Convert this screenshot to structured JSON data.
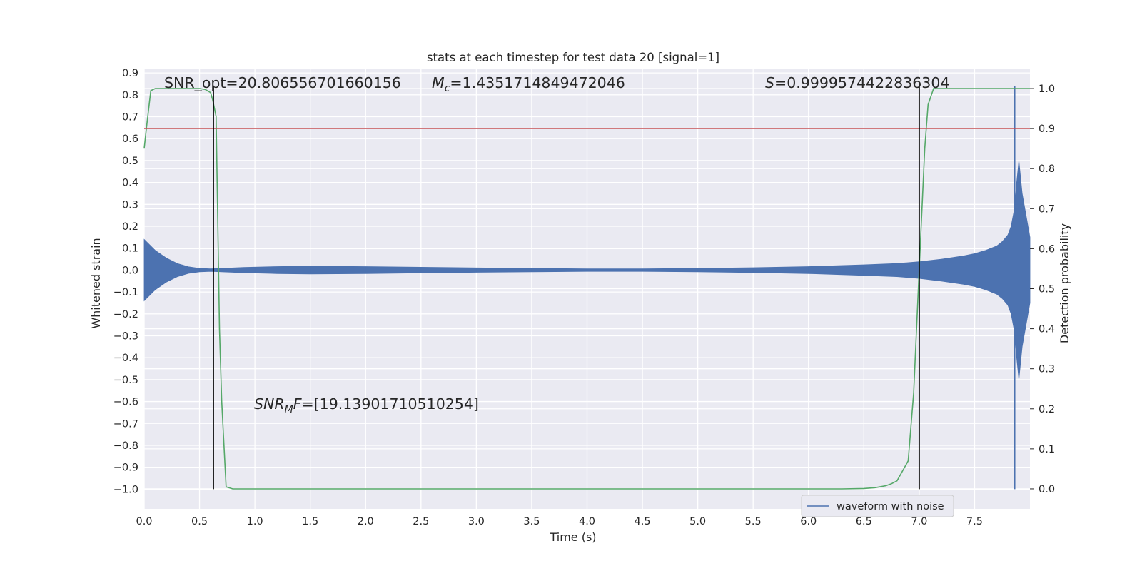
{
  "chart_data": {
    "type": "line",
    "title": "stats at each timestep for test data 20 [signal=1]",
    "xlabel": "Time (s)",
    "ylabel": "Whitened strain",
    "y2label": "Detection probability",
    "xlim": [
      0.0,
      8.0
    ],
    "ylim": [
      -1.09,
      0.92
    ],
    "y2lim": [
      -0.05,
      1.05
    ],
    "x_ticks": [
      0.0,
      0.5,
      1.0,
      1.5,
      2.0,
      2.5,
      3.0,
      3.5,
      4.0,
      4.5,
      5.0,
      5.5,
      6.0,
      6.5,
      7.0,
      7.5
    ],
    "x_tick_labels": [
      "0.0",
      "0.5",
      "1.0",
      "1.5",
      "2.0",
      "2.5",
      "3.0",
      "3.5",
      "4.0",
      "4.5",
      "5.0",
      "5.5",
      "6.0",
      "6.5",
      "7.0",
      "7.5"
    ],
    "y_ticks": [
      0.9,
      0.8,
      0.7,
      0.6,
      0.5,
      0.4,
      0.3,
      0.2,
      0.1,
      0.0,
      -0.1,
      -0.2,
      -0.3,
      -0.4,
      -0.5,
      -0.6,
      -0.7,
      -0.8,
      -0.9,
      -1.0
    ],
    "y_tick_labels": [
      "0.9",
      "0.8",
      "0.7",
      "0.6",
      "0.5",
      "0.4",
      "0.3",
      "0.2",
      "0.1",
      "0.0",
      "−0.1",
      "−0.2",
      "−0.3",
      "−0.4",
      "−0.5",
      "−0.6",
      "−0.7",
      "−0.8",
      "−0.9",
      "−1.0"
    ],
    "y2_ticks": [
      1.0,
      0.9,
      0.8,
      0.7,
      0.6,
      0.5,
      0.4,
      0.3,
      0.2,
      0.1,
      0.0
    ],
    "y2_tick_labels": [
      "1.0",
      "0.9",
      "0.8",
      "0.7",
      "0.6",
      "0.5",
      "0.4",
      "0.3",
      "0.2",
      "0.1",
      "0.0"
    ],
    "grid": true,
    "background": "#eaeaf2",
    "series": [
      {
        "name": "waveform with noise",
        "axis": "left",
        "color": "#4c72b0",
        "envelope_x": [
          0.0,
          0.1,
          0.2,
          0.3,
          0.4,
          0.5,
          0.6,
          0.7,
          0.9,
          1.2,
          1.5,
          2.0,
          2.5,
          3.0,
          3.5,
          4.0,
          4.5,
          5.0,
          5.5,
          6.0,
          6.5,
          6.8,
          7.0,
          7.2,
          7.4,
          7.5,
          7.6,
          7.7,
          7.75,
          7.8,
          7.83,
          7.86,
          7.88,
          7.9,
          7.93,
          8.0
        ],
        "envelope_y": [
          0.14,
          0.09,
          0.055,
          0.03,
          0.015,
          0.008,
          0.006,
          0.008,
          0.012,
          0.016,
          0.018,
          0.016,
          0.013,
          0.01,
          0.008,
          0.006,
          0.006,
          0.008,
          0.011,
          0.016,
          0.024,
          0.03,
          0.038,
          0.05,
          0.065,
          0.075,
          0.09,
          0.11,
          0.13,
          0.16,
          0.2,
          0.28,
          0.4,
          0.5,
          0.35,
          0.15
        ],
        "spike": {
          "x": 7.86,
          "ymin": -1.0,
          "ymax": 0.84
        }
      },
      {
        "name": "",
        "axis": "right",
        "color": "#55a868",
        "x": [
          0.0,
          0.02,
          0.06,
          0.1,
          0.2,
          0.3,
          0.4,
          0.5,
          0.55,
          0.6,
          0.62,
          0.65,
          0.68,
          0.7,
          0.74,
          0.8,
          1.0,
          2.0,
          3.0,
          4.0,
          5.0,
          6.0,
          6.3,
          6.5,
          6.6,
          6.7,
          6.75,
          6.8,
          6.9,
          6.95,
          7.0,
          7.05,
          7.08,
          7.13,
          7.2,
          8.0
        ],
        "y": [
          0.85,
          0.9,
          0.995,
          1.0,
          1.0,
          1.0,
          1.0,
          1.0,
          0.998,
          0.99,
          0.97,
          0.93,
          0.4,
          0.22,
          0.005,
          0.0,
          0.0,
          0.0,
          0.0,
          0.0,
          0.0,
          0.0,
          0.0,
          0.001,
          0.003,
          0.008,
          0.013,
          0.02,
          0.07,
          0.24,
          0.55,
          0.85,
          0.96,
          1.0,
          1.0,
          1.0
        ]
      },
      {
        "name": "",
        "axis": "right",
        "color": "#c44e52",
        "type": "hline",
        "y": 0.9
      }
    ],
    "vlines": [
      {
        "x": 0.625,
        "ymin": -1.0,
        "ymax": 0.84,
        "color": "#000000"
      },
      {
        "x": 7.0,
        "ymin": -1.0,
        "ymax": 0.84,
        "color": "#000000"
      }
    ],
    "annotations": {
      "snr_opt": "SNR_opt=20.806556701660156",
      "mc_symbol": "M",
      "mc_sub": "c",
      "mc_value": "=1.4351714849472046",
      "s_symbol": "S",
      "s_value": "=0.9999574422836304",
      "snrmf_symbol": "SNR",
      "snrmf_sub": "M",
      "snrmf_f": "F",
      "snrmf_value": "=[19.13901710510254]"
    },
    "legend": {
      "position": "lower-right",
      "entries": [
        "waveform with noise"
      ]
    }
  }
}
